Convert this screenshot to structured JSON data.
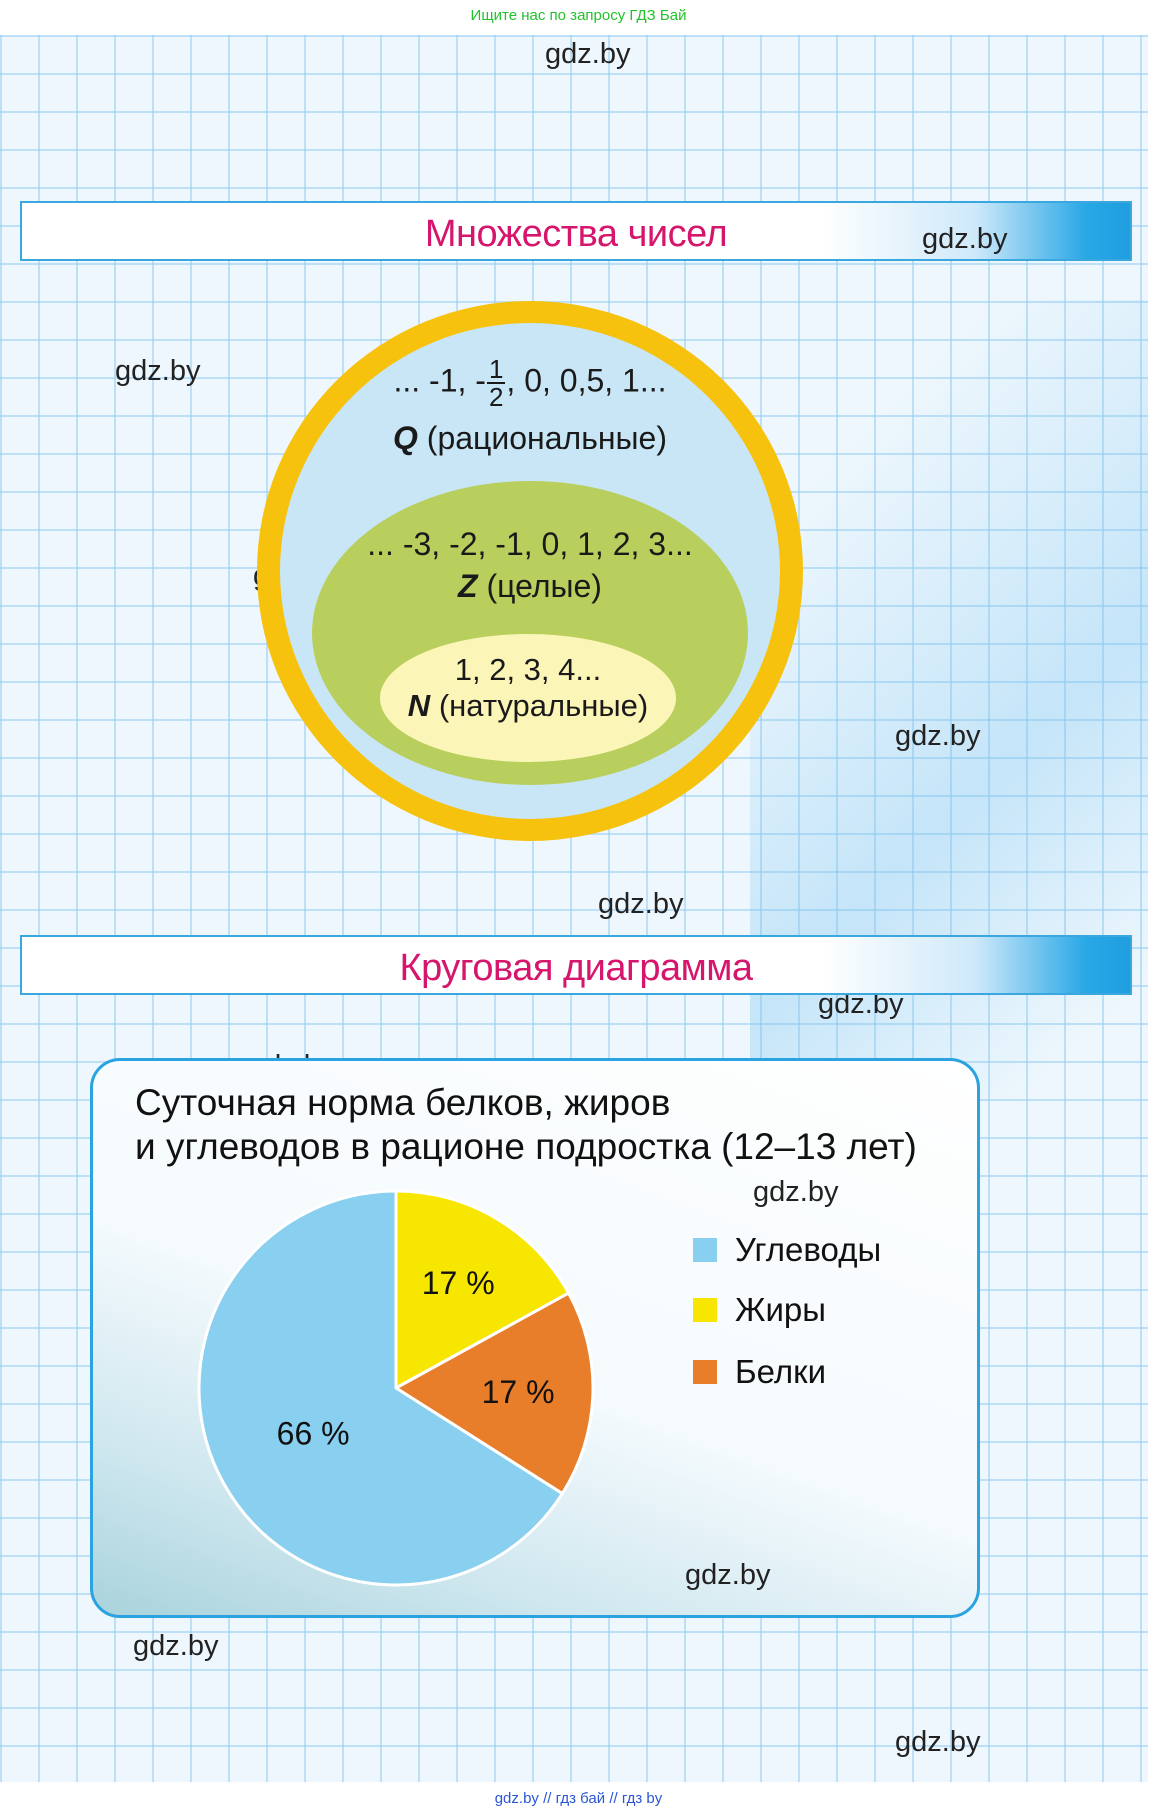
{
  "top_note": "Ищите нас по запросу ГДЗ Бай",
  "bottom_note": "gdz.by  //  гдз бай  //  гдз by",
  "watermark": "gdz.by",
  "sets_section": {
    "title": "Множества чисел",
    "rational": {
      "pre": "... -1, -",
      "frac_num": "1",
      "frac_den": "2",
      "post": ", 0, 0,5, 1...",
      "symbol": "Q",
      "label": "(рациональные)"
    },
    "integer": {
      "line": "... -3, -2, -1, 0, 1, 2, 3...",
      "symbol": "Z",
      "label": "(целые)"
    },
    "natural": {
      "line": "1, 2, 3, 4...",
      "symbol": "N",
      "label": "(натуральные)"
    },
    "colors": {
      "outer_ring": "#f7c20e",
      "rational_fill": "#c9e6f6",
      "integer_fill": "#b8cf5d",
      "natural_fill": "#fbf6b7"
    }
  },
  "pie_section": {
    "title": "Круговая диаграмма"
  },
  "chart_data": {
    "type": "pie",
    "title_line1": "Суточная норма белков, жиров",
    "title_line2": "и углеводов в рационе подростка (12–13 лет)",
    "slices": [
      {
        "name": "Углеводы",
        "value": 66,
        "label": "66 %",
        "color": "#88cff0"
      },
      {
        "name": "Жиры",
        "value": 17,
        "label": "17 %",
        "color": "#f7e600"
      },
      {
        "name": "Белки",
        "value": 17,
        "label": "17 %",
        "color": "#e87d2a"
      }
    ],
    "slice_order_clockwise_from_top": [
      "Жиры",
      "Белки",
      "Углеводы"
    ],
    "legend_placement": "right"
  }
}
